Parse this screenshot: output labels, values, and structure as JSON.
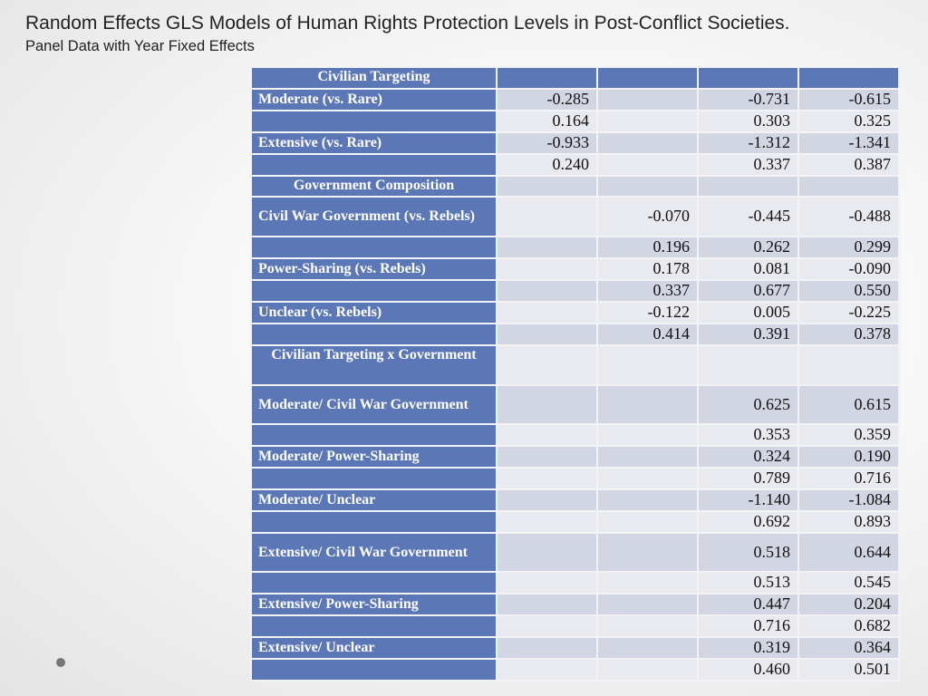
{
  "slide": {
    "title": "Random Effects GLS Models of Human Rights Protection Levels in Post-Conflict Societies.",
    "subtitle": "Panel Data with Year Fixed Effects"
  },
  "colors": {
    "label_fill": "#5b77b6",
    "row_dark": "#d2d5e2",
    "row_light": "#e9eaf0"
  },
  "table": {
    "rows": [
      {
        "label": "Civilian Targeting",
        "section": true,
        "values": [
          "",
          "",
          "",
          ""
        ]
      },
      {
        "label": "Moderate (vs. Rare)",
        "values": [
          "-0.285",
          "",
          "-0.731",
          "-0.615"
        ]
      },
      {
        "label": "",
        "values": [
          "0.164",
          "",
          "0.303",
          "0.325"
        ]
      },
      {
        "label": "Extensive (vs. Rare)",
        "values": [
          "-0.933",
          "",
          "-1.312",
          "-1.341"
        ]
      },
      {
        "label": "",
        "values": [
          "0.240",
          "",
          "0.337",
          "0.387"
        ]
      },
      {
        "label": "Government Composition",
        "section": true,
        "values": [
          "",
          "",
          "",
          ""
        ]
      },
      {
        "label": "Civil War Government (vs. Rebels)",
        "values": [
          "",
          "-0.070",
          "-0.445",
          "-0.488"
        ]
      },
      {
        "label": "",
        "values": [
          "",
          "0.196",
          "0.262",
          "0.299"
        ]
      },
      {
        "label": "Power-Sharing (vs. Rebels)",
        "values": [
          "",
          "0.178",
          "0.081",
          "-0.090"
        ]
      },
      {
        "label": "",
        "values": [
          "",
          "0.337",
          "0.677",
          "0.550"
        ]
      },
      {
        "label": "Unclear (vs. Rebels)",
        "values": [
          "",
          "-0.122",
          "0.005",
          "-0.225"
        ]
      },
      {
        "label": "",
        "values": [
          "",
          "0.414",
          "0.391",
          "0.378"
        ]
      },
      {
        "label": "Civilian Targeting x Government",
        "section": true,
        "values": [
          "",
          "",
          "",
          ""
        ]
      },
      {
        "label": "Moderate/ Civil War Government",
        "values": [
          "",
          "",
          "0.625",
          "0.615"
        ]
      },
      {
        "label": "",
        "values": [
          "",
          "",
          "0.353",
          "0.359"
        ]
      },
      {
        "label": "Moderate/ Power-Sharing",
        "values": [
          "",
          "",
          "0.324",
          "0.190"
        ]
      },
      {
        "label": "",
        "values": [
          "",
          "",
          "0.789",
          "0.716"
        ]
      },
      {
        "label": "Moderate/ Unclear",
        "values": [
          "",
          "",
          "-1.140",
          "-1.084"
        ]
      },
      {
        "label": "",
        "values": [
          "",
          "",
          "0.692",
          "0.893"
        ]
      },
      {
        "label": "Extensive/ Civil War Government",
        "values": [
          "",
          "",
          "0.518",
          "0.644"
        ]
      },
      {
        "label": "",
        "values": [
          "",
          "",
          "0.513",
          "0.545"
        ]
      },
      {
        "label": "Extensive/ Power-Sharing",
        "values": [
          "",
          "",
          "0.447",
          "0.204"
        ]
      },
      {
        "label": "",
        "values": [
          "",
          "",
          "0.716",
          "0.682"
        ]
      },
      {
        "label": "Extensive/ Unclear",
        "values": [
          "",
          "",
          "0.319",
          "0.364"
        ]
      },
      {
        "label": "",
        "values": [
          "",
          "",
          "0.460",
          "0.501"
        ]
      }
    ]
  }
}
